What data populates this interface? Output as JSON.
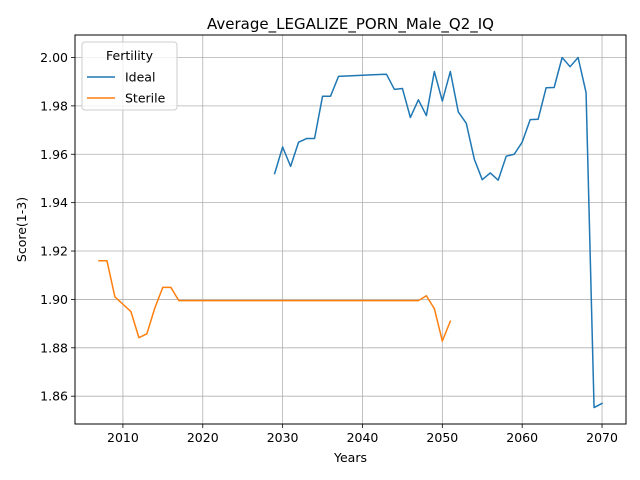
{
  "chart_data": {
    "type": "line",
    "title": "Average_LEGALIZE_PORN_Male_Q2_IQ",
    "xlabel": "Years",
    "ylabel": "Score(1-3)",
    "xlim": [
      2004,
      2073
    ],
    "ylim": [
      1.8485,
      2.0093
    ],
    "xticks": [
      2010,
      2020,
      2030,
      2040,
      2050,
      2060,
      2070
    ],
    "yticks": [
      1.86,
      1.88,
      1.9,
      1.92,
      1.94,
      1.96,
      1.98,
      2.0
    ],
    "grid": true,
    "legend": {
      "title": "Fertility",
      "position": "top-left"
    },
    "series": [
      {
        "name": "Ideal",
        "color": "#1f77b4",
        "x": [
          2029,
          2030,
          2031,
          2032,
          2033,
          2034,
          2035,
          2036,
          2037,
          2041,
          2043,
          2044,
          2045,
          2046,
          2047,
          2048,
          2049,
          2050,
          2051,
          2052,
          2053,
          2054,
          2055,
          2056,
          2057,
          2058,
          2059,
          2060,
          2061,
          2062,
          2063,
          2064,
          2065,
          2066,
          2067,
          2068,
          2069,
          2070
        ],
        "y": [
          1.952,
          1.963,
          1.955,
          1.965,
          1.9665,
          1.9665,
          1.984,
          1.984,
          1.9922,
          1.9928,
          1.9931,
          1.9868,
          1.9872,
          1.9752,
          1.9825,
          1.976,
          1.9942,
          1.982,
          1.9942,
          1.9775,
          1.9728,
          1.958,
          1.9495,
          1.9523,
          1.9493,
          1.9592,
          1.96,
          1.965,
          1.9743,
          1.9745,
          1.9875,
          1.9876,
          2.0,
          1.9962,
          2.0,
          1.9855,
          1.8553,
          1.857
        ]
      },
      {
        "name": "Sterile",
        "color": "#ff7f0e",
        "x": [
          2007,
          2008,
          2009,
          2010,
          2011,
          2012,
          2013,
          2014,
          2015,
          2016,
          2017,
          2018,
          2047,
          2048,
          2049,
          2050,
          2051
        ],
        "y": [
          1.916,
          1.916,
          1.901,
          1.898,
          1.895,
          1.8842,
          1.8858,
          1.8965,
          1.905,
          1.905,
          1.8995,
          1.8995,
          1.8995,
          1.9015,
          1.8962,
          1.8828,
          1.891
        ]
      }
    ]
  }
}
